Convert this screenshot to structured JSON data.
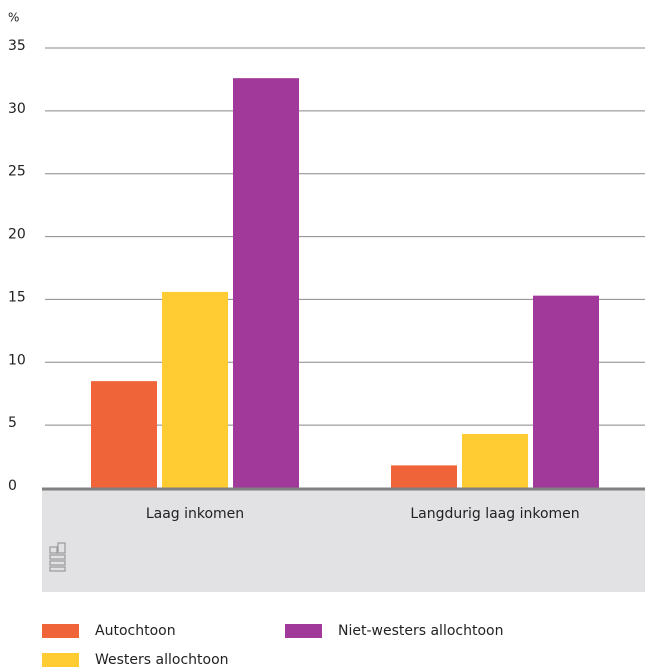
{
  "chart_data": {
    "type": "bar",
    "y_label": "%",
    "categories": [
      "Laag inkomen",
      "Langdurig laag inkomen"
    ],
    "series": [
      {
        "name": "Autochtoon",
        "color": "#f0643a",
        "values": [
          8.5,
          1.8
        ]
      },
      {
        "name": "Westers allochtoon",
        "color": "#ffcc33",
        "values": [
          15.6,
          4.3
        ]
      },
      {
        "name": "Niet-westers allochtoon",
        "color": "#a0399a",
        "values": [
          32.6,
          15.3
        ]
      }
    ],
    "ylim": [
      0,
      35
    ],
    "yticks": [
      0,
      5,
      10,
      15,
      20,
      25,
      30,
      35
    ],
    "grid": true
  }
}
